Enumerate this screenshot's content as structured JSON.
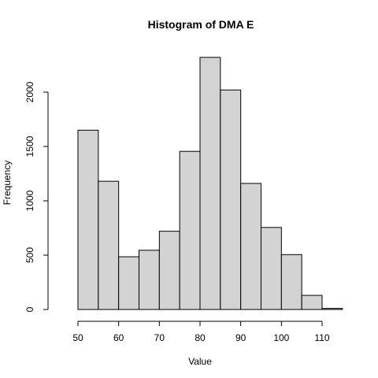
{
  "chart_data": {
    "type": "bar",
    "title": "Histogram of DMA E",
    "xlabel": "Value",
    "ylabel": "Frequency",
    "bin_edges": [
      50,
      55,
      60,
      65,
      70,
      75,
      80,
      85,
      90,
      95,
      100,
      105,
      110,
      115
    ],
    "values": [
      1650,
      1180,
      485,
      545,
      720,
      1455,
      2320,
      2020,
      1160,
      755,
      505,
      130,
      10
    ],
    "xlim": [
      45,
      115
    ],
    "ylim": [
      0,
      2200
    ],
    "xticks": [
      "50",
      "60",
      "70",
      "80",
      "90",
      "100",
      "110"
    ],
    "yticks": [
      "0",
      "500",
      "1000",
      "1500",
      "2000"
    ],
    "bar_color": "#d3d3d3",
    "grid": false,
    "legend": "none"
  }
}
